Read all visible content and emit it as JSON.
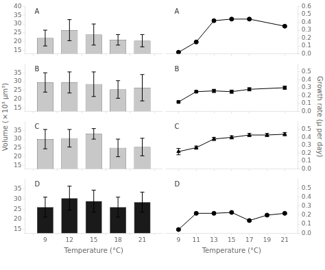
{
  "chart_data": [
    {
      "type": "bar",
      "x": [
        9,
        12,
        15,
        18,
        21
      ],
      "values": [
        22,
        26.5,
        24,
        21,
        20.5
      ],
      "errors": [
        4.5,
        6,
        6,
        3,
        3.5
      ],
      "color": "#c8c8c8",
      "xlim": [
        6.5,
        23.5
      ],
      "xticks": [
        9,
        12,
        15,
        18,
        21
      ],
      "ylim": [
        13,
        40
      ],
      "yticks": [
        15,
        20,
        25,
        30,
        35,
        40
      ],
      "grid": false,
      "tick_labels": "y",
      "annotations": [
        {
          "text": "A"
        }
      ],
      "ylabel": "Volume (×10³ μm³)"
    },
    {
      "type": "line",
      "x": [
        9,
        11,
        13,
        15,
        17,
        21
      ],
      "values": [
        0.02,
        0.15,
        0.42,
        0.44,
        0.44,
        0.35
      ],
      "errors": [
        0.005,
        0.005,
        0.01,
        0.01,
        0.01,
        0.01
      ],
      "color": "#000000",
      "marker": "circle",
      "xlim": [
        7.5,
        22.5
      ],
      "xticks": [
        9,
        11,
        13,
        15,
        17,
        21
      ],
      "ylim": [
        0.0,
        0.6
      ],
      "yticks": [
        {
          "value": 0.0,
          "label": "0.0"
        },
        0.1,
        0.2,
        0.3,
        0.4,
        0.5,
        0.6
      ],
      "grid": false,
      "tick_labels": "y",
      "annotations": [
        {
          "text": "A"
        }
      ],
      "ylabel": "Growth rate (μ per day)"
    },
    {
      "type": "bar",
      "x": [
        9,
        12,
        15,
        18,
        21
      ],
      "values": [
        29.5,
        29.5,
        28.5,
        25.5,
        26.5
      ],
      "errors": [
        5.5,
        6,
        7,
        5,
        7.5
      ],
      "color": "#c8c8c8",
      "xlim": [
        6.5,
        23.5
      ],
      "xticks": [
        9,
        12,
        15,
        18,
        21
      ],
      "ylim": [
        13,
        40
      ],
      "yticks": [
        15,
        20,
        25,
        30,
        35
      ],
      "grid": false,
      "tick_labels": "y",
      "annotations": [
        {
          "text": "B"
        }
      ]
    },
    {
      "type": "line",
      "x": [
        9,
        11,
        13,
        15,
        17,
        21
      ],
      "values": [
        0.12,
        0.25,
        0.26,
        0.25,
        0.28,
        0.3
      ],
      "errors": [
        0.01,
        0.01,
        0.02,
        0.02,
        0.02,
        0.02
      ],
      "color": "#000000",
      "marker": "square",
      "xlim": [
        7.5,
        22.5
      ],
      "xticks": [
        9,
        11,
        13,
        15,
        17,
        21
      ],
      "ylim": [
        0.0,
        0.6
      ],
      "yticks": [
        {
          "value": 0.0,
          "label": "0.0"
        },
        0.1,
        0.2,
        0.3,
        0.4,
        0.5
      ],
      "grid": false,
      "tick_labels": "y",
      "annotations": [
        {
          "text": "B"
        }
      ]
    },
    {
      "type": "bar",
      "x": [
        9,
        12,
        15,
        18,
        21
      ],
      "values": [
        30,
        30.5,
        33,
        25,
        25.5
      ],
      "errors": [
        5.5,
        5,
        3,
        5,
        5
      ],
      "color": "#c8c8c8",
      "xlim": [
        6.5,
        23.5
      ],
      "xticks": [
        9,
        12,
        15,
        18,
        21
      ],
      "ylim": [
        13,
        40
      ],
      "yticks": [
        15,
        20,
        25,
        30,
        35
      ],
      "grid": false,
      "tick_labels": "y",
      "annotations": [
        {
          "text": "C"
        }
      ]
    },
    {
      "type": "line",
      "x": [
        9,
        11,
        13,
        15,
        17,
        19,
        21
      ],
      "values": [
        0.22,
        0.27,
        0.38,
        0.4,
        0.43,
        0.43,
        0.44
      ],
      "errors": [
        0.04,
        0.02,
        0.02,
        0.02,
        0.02,
        0.02,
        0.02
      ],
      "color": "#000000",
      "marker": "triangle",
      "xlim": [
        7.5,
        22.5
      ],
      "xticks": [
        9,
        11,
        13,
        15,
        17,
        19,
        21
      ],
      "ylim": [
        0.0,
        0.6
      ],
      "yticks": [
        {
          "value": 0.0,
          "label": "0.0"
        },
        0.1,
        0.2,
        0.3,
        0.4,
        0.5
      ],
      "grid": false,
      "tick_labels": "y",
      "annotations": [
        {
          "text": "C"
        }
      ]
    },
    {
      "type": "bar",
      "x": [
        9,
        12,
        15,
        18,
        21
      ],
      "values": [
        26,
        30.5,
        29,
        26,
        28.5
      ],
      "errors": [
        5,
        6,
        5.5,
        5,
        5
      ],
      "color": "#1a1a1a",
      "xlim": [
        6.5,
        23.5
      ],
      "xticks": [
        9,
        12,
        15,
        18,
        21
      ],
      "ylim": [
        13,
        40
      ],
      "yticks": [
        15,
        20,
        25,
        30,
        35
      ],
      "grid": false,
      "annotations": [
        {
          "text": "D"
        }
      ],
      "xlabel": "Temperature (°C)"
    },
    {
      "type": "line",
      "x": [
        9,
        11,
        13,
        15,
        17,
        19,
        21
      ],
      "values": [
        0.04,
        0.22,
        0.22,
        0.23,
        0.14,
        0.2,
        0.22
      ],
      "errors": [
        0.01,
        0.01,
        0.01,
        0.01,
        0.01,
        0.01,
        0.01
      ],
      "color": "#000000",
      "marker": "circle",
      "xlim": [
        7.5,
        22.5
      ],
      "xticks": [
        9,
        11,
        13,
        15,
        17,
        19,
        21
      ],
      "ylim": [
        0.0,
        0.6
      ],
      "yticks": [
        {
          "value": 0.0,
          "label": "0.0"
        },
        0.1,
        0.2,
        0.3,
        0.4,
        0.5
      ],
      "grid": false,
      "annotations": [
        {
          "text": "D"
        }
      ],
      "xlabel": "Temperature (°C)"
    }
  ]
}
